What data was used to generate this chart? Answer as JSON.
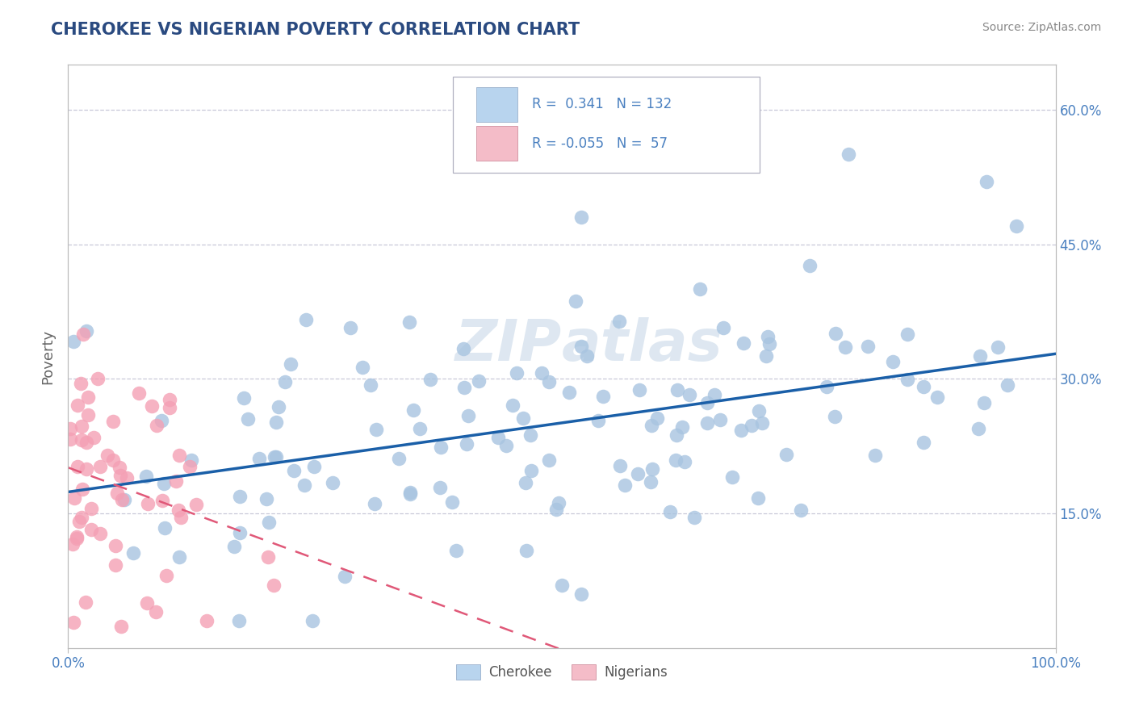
{
  "title": "CHEROKEE VS NIGERIAN POVERTY CORRELATION CHART",
  "source": "Source: ZipAtlas.com",
  "ylabel": "Poverty",
  "watermark": "ZIPAtlas",
  "r_cherokee": 0.341,
  "n_cherokee": 132,
  "r_nigerian": -0.055,
  "n_nigerian": 57,
  "xlim": [
    0,
    100
  ],
  "ylim": [
    0,
    65
  ],
  "ytick_vals": [
    15,
    30,
    45,
    60
  ],
  "ytick_labels": [
    "15.0%",
    "30.0%",
    "45.0%",
    "60.0%"
  ],
  "xtick_vals": [
    0,
    100
  ],
  "xtick_labels": [
    "0.0%",
    "100.0%"
  ],
  "cherokee_color": "#a8c4e0",
  "nigerian_color": "#f4a0b4",
  "cherokee_line_color": "#1a5fa8",
  "nigerian_line_color": "#e05878",
  "legend_box_cherokee": "#b8d4ee",
  "legend_box_nigerian": "#f4bcc8",
  "title_color": "#2a4a80",
  "axis_label_color": "#4a80c0",
  "source_color": "#888888",
  "background_color": "#ffffff",
  "grid_color": "#c8c8d8",
  "spine_color": "#bbbbbb",
  "cherokee_intercept": 18.0,
  "cherokee_slope": 0.12,
  "nigerian_intercept": 18.5,
  "nigerian_slope": -0.095,
  "seed": 1234
}
